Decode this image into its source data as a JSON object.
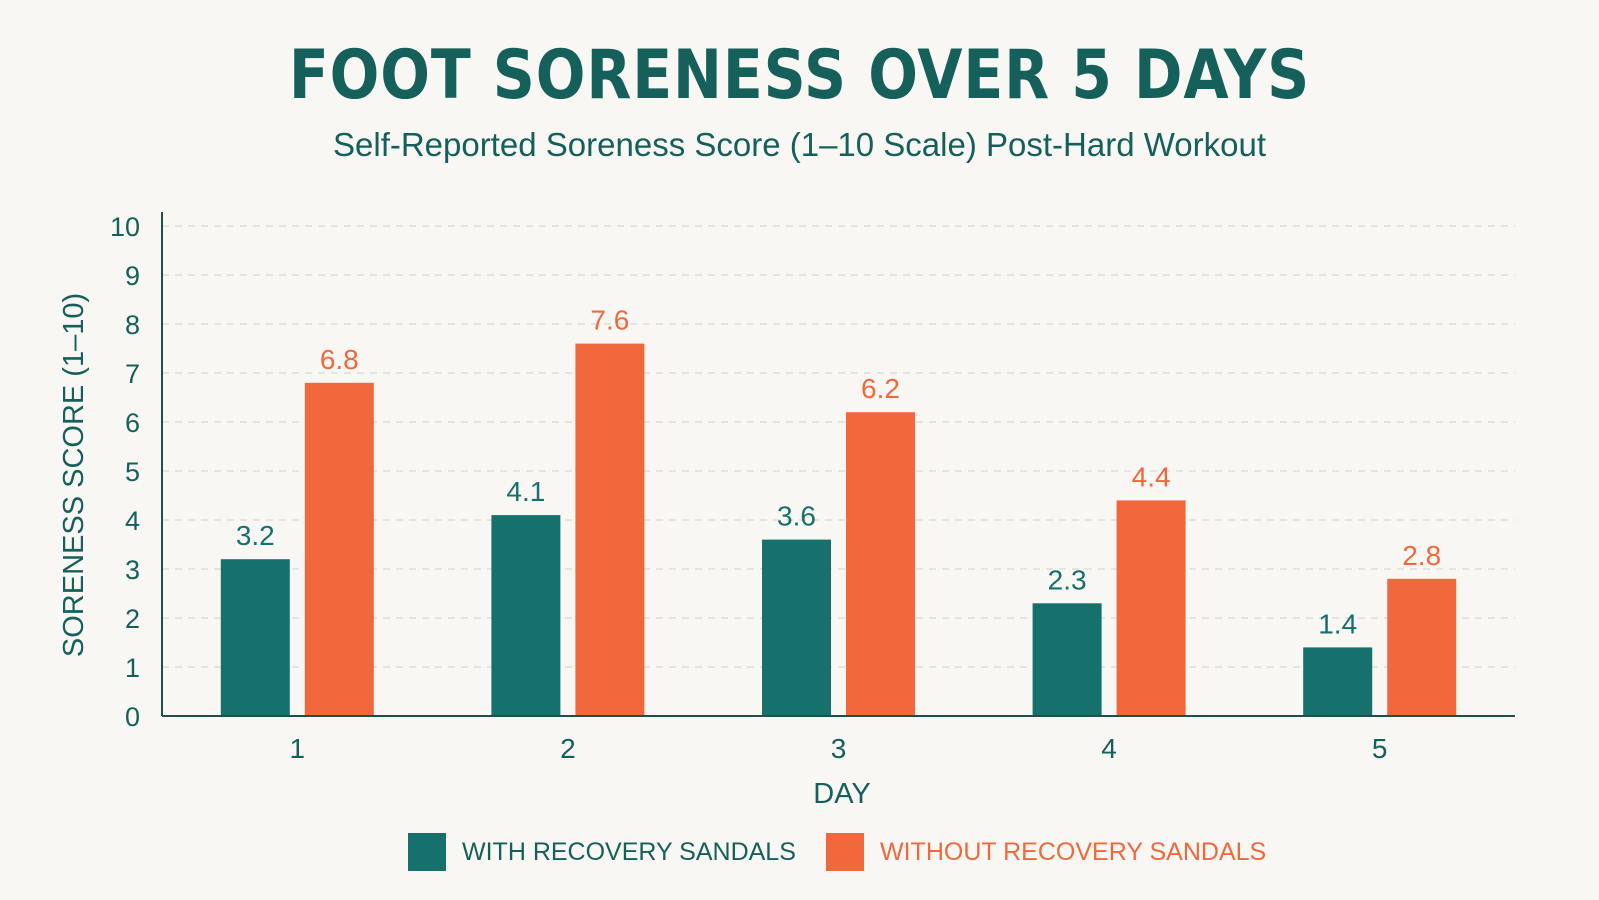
{
  "chart_data": {
    "type": "bar",
    "title": "FOOT SORENESS OVER 5 DAYS",
    "subtitle": "Self-Reported Soreness Score (1–10 Scale) Post-Hard Workout",
    "xlabel": "DAY",
    "ylabel": "SORENESS SCORE (1–10)",
    "categories": [
      "1",
      "2",
      "3",
      "4",
      "5"
    ],
    "ylim": [
      0,
      10
    ],
    "yticks": [
      "0",
      "1",
      "2",
      "3",
      "4",
      "5",
      "6",
      "7",
      "8",
      "9",
      "10"
    ],
    "grid": true,
    "legend_position": "bottom",
    "series": [
      {
        "name": "WITH RECOVERY SANDALS",
        "color": "#16706b",
        "values": [
          3.2,
          4.1,
          3.6,
          2.3,
          1.4
        ],
        "labels": [
          "3.2",
          "4.1",
          "3.6",
          "2.3",
          "1.4"
        ]
      },
      {
        "name": "WITHOUT RECOVERY SANDALS",
        "color": "#f2683d",
        "values": [
          6.8,
          7.6,
          6.2,
          4.4,
          2.8
        ],
        "labels": [
          "6.8",
          "7.6",
          "6.2",
          "4.4",
          "2.8"
        ]
      }
    ]
  },
  "colors": {
    "title": "#16605c",
    "background": "#f8f7f3",
    "grid": "#d9d7d0"
  }
}
